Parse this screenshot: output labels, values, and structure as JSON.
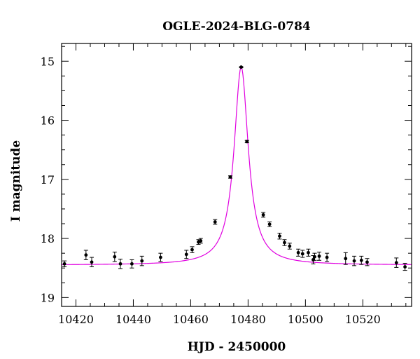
{
  "chart_data": {
    "type": "scatter",
    "title": "OGLE-2024-BLG-0784",
    "xlabel": "HJD - 2450000",
    "ylabel": "I magnitude",
    "xlim": [
      10415,
      10537
    ],
    "ylim": [
      19.15,
      14.7
    ],
    "y_inverted": true,
    "grid": false,
    "x_ticks": [
      10420,
      10440,
      10460,
      10480,
      10500,
      10520
    ],
    "y_ticks": [
      15,
      16,
      17,
      18,
      19
    ],
    "x_minor_step": 5,
    "y_minor_step": 0.25,
    "colors": {
      "model": "#e000e0",
      "points": "#000000",
      "axes": "#000000"
    },
    "model": {
      "t0": 10477.6,
      "baseline": 18.45,
      "peak": 15.1,
      "width": 3.0,
      "shape": "lorentzian"
    },
    "series": [
      {
        "type": "errorbar",
        "x": [
          10416,
          10423.5,
          10425.5,
          10433.5,
          10435.5,
          10439.5,
          10443,
          10449.5,
          10458.5,
          10460.5,
          10462.7,
          10463.5,
          10468.5,
          10473.8,
          10477.6,
          10479.6,
          10485.3,
          10487.5,
          10491,
          10492.7,
          10494.5,
          10497.5,
          10499,
          10501,
          10502.7,
          10503.2,
          10504.8,
          10507.5,
          10514,
          10517,
          10519.5,
          10521.5,
          10531.7,
          10534.7
        ],
        "y": [
          18.43,
          18.28,
          18.4,
          18.31,
          18.43,
          18.43,
          18.38,
          18.32,
          18.27,
          18.19,
          18.06,
          18.04,
          17.72,
          16.96,
          15.1,
          16.36,
          17.6,
          17.76,
          17.96,
          18.07,
          18.13,
          18.24,
          18.26,
          18.24,
          18.36,
          18.31,
          18.3,
          18.32,
          18.34,
          18.38,
          18.37,
          18.4,
          18.41,
          18.48
        ],
        "yerr": [
          0.05,
          0.08,
          0.08,
          0.08,
          0.08,
          0.07,
          0.08,
          0.07,
          0.07,
          0.05,
          0.04,
          0.04,
          0.04,
          0.02,
          0.01,
          0.02,
          0.04,
          0.04,
          0.05,
          0.05,
          0.05,
          0.06,
          0.06,
          0.06,
          0.07,
          0.06,
          0.07,
          0.07,
          0.1,
          0.08,
          0.07,
          0.06,
          0.08,
          0.06
        ]
      }
    ]
  }
}
